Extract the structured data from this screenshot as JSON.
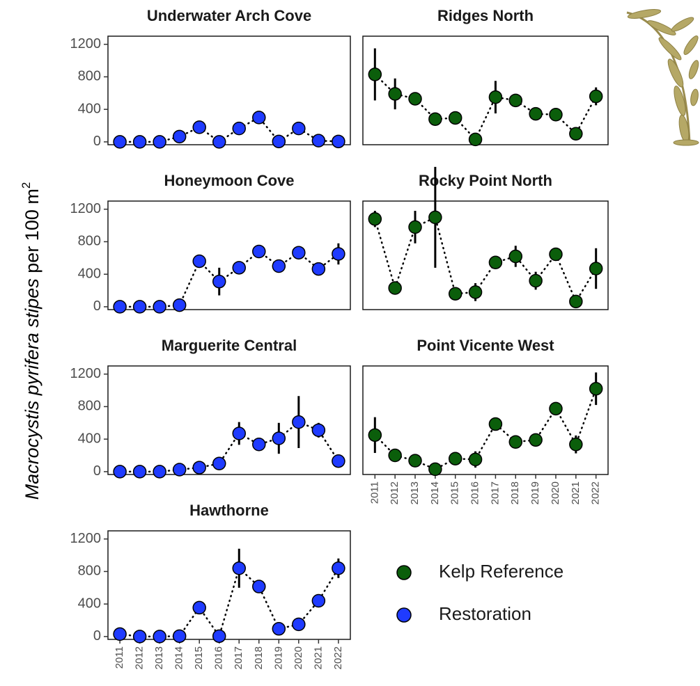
{
  "y_label": [
    "Macrocystis pyrifera stipes",
    "per 100 m",
    "2"
  ],
  "legend": [
    {
      "label": "Kelp Reference",
      "color": "#0b5e0b"
    },
    {
      "label": "Restoration",
      "color": "#1f3bff"
    }
  ],
  "chart_data": [
    {
      "type": "line",
      "title": "Underwater Arch Cove",
      "color": "#1f3bff",
      "x": [
        2011,
        2012,
        2013,
        2014,
        2015,
        2016,
        2017,
        2018,
        2019,
        2020,
        2021,
        2022
      ],
      "values": [
        0,
        0,
        0,
        65,
        180,
        0,
        165,
        300,
        5,
        165,
        15,
        5
      ],
      "errors": [
        0,
        0,
        0,
        10,
        15,
        0,
        20,
        20,
        0,
        20,
        5,
        0
      ],
      "xlim": [
        2010.4,
        2022.6
      ],
      "ylim": [
        -35,
        1300
      ],
      "yticks": [
        0,
        400,
        800,
        1200
      ]
    },
    {
      "type": "line",
      "title": "Ridges North",
      "color": "#0b5e0b",
      "x": [
        2011,
        2012,
        2013,
        2014,
        2015,
        2016,
        2017,
        2018,
        2019,
        2020,
        2021,
        2022
      ],
      "values": [
        830,
        590,
        530,
        280,
        295,
        30,
        550,
        510,
        345,
        335,
        100,
        560
      ],
      "errors": [
        320,
        190,
        30,
        20,
        20,
        10,
        200,
        80,
        30,
        20,
        20,
        110
      ],
      "xlim": [
        2010.4,
        2022.6
      ],
      "ylim": [
        -35,
        1300
      ]
    },
    {
      "type": "line",
      "title": "Honeymoon Cove",
      "color": "#1f3bff",
      "x": [
        2011,
        2012,
        2013,
        2014,
        2015,
        2016,
        2017,
        2018,
        2019,
        2020,
        2021,
        2022
      ],
      "values": [
        0,
        0,
        0,
        20,
        560,
        310,
        480,
        680,
        500,
        665,
        465,
        650
      ],
      "errors": [
        0,
        0,
        0,
        10,
        30,
        170,
        40,
        30,
        20,
        30,
        30,
        130
      ],
      "xlim": [
        2010.4,
        2022.6
      ],
      "ylim": [
        -35,
        1300
      ],
      "yticks": [
        0,
        400,
        800,
        1200
      ]
    },
    {
      "type": "line",
      "title": "Rocky Point North",
      "color": "#0b5e0b",
      "x": [
        2011,
        2012,
        2013,
        2014,
        2015,
        2016,
        2017,
        2018,
        2019,
        2020,
        2021,
        2022
      ],
      "values": [
        1080,
        230,
        980,
        1100,
        160,
        180,
        545,
        620,
        320,
        645,
        65,
        470
      ],
      "errors": [
        100,
        20,
        200,
        620,
        20,
        110,
        30,
        130,
        110,
        30,
        10,
        250
      ],
      "xlim": [
        2010.4,
        2022.6
      ],
      "ylim": [
        -35,
        1300
      ]
    },
    {
      "type": "line",
      "title": "Marguerite Central",
      "color": "#1f3bff",
      "x": [
        2011,
        2012,
        2013,
        2014,
        2015,
        2016,
        2017,
        2018,
        2019,
        2020,
        2021,
        2022
      ],
      "values": [
        0,
        0,
        0,
        25,
        50,
        100,
        470,
        335,
        410,
        610,
        510,
        130
      ],
      "errors": [
        0,
        0,
        0,
        10,
        15,
        60,
        140,
        30,
        190,
        320,
        90,
        20
      ],
      "xlim": [
        2010.4,
        2022.6
      ],
      "ylim": [
        -35,
        1300
      ],
      "yticks": [
        0,
        400,
        800,
        1200
      ]
    },
    {
      "type": "line",
      "title": "Point Vicente West",
      "color": "#0b5e0b",
      "x": [
        2011,
        2012,
        2013,
        2014,
        2015,
        2016,
        2017,
        2018,
        2019,
        2020,
        2021,
        2022
      ],
      "values": [
        450,
        200,
        135,
        30,
        160,
        150,
        585,
        365,
        390,
        775,
        335,
        1020
      ],
      "errors": [
        220,
        20,
        20,
        10,
        60,
        100,
        30,
        20,
        20,
        80,
        110,
        200
      ],
      "xlim": [
        2010.4,
        2022.6
      ],
      "ylim": [
        -35,
        1300
      ],
      "xticks": [
        2011,
        2012,
        2013,
        2014,
        2015,
        2016,
        2017,
        2018,
        2019,
        2020,
        2021,
        2022
      ]
    },
    {
      "type": "line",
      "title": "Hawthorne",
      "color": "#1f3bff",
      "x": [
        2011,
        2012,
        2013,
        2014,
        2015,
        2016,
        2017,
        2018,
        2019,
        2020,
        2021,
        2022
      ],
      "values": [
        30,
        0,
        0,
        5,
        355,
        5,
        840,
        615,
        95,
        150,
        440,
        840
      ],
      "errors": [
        10,
        0,
        0,
        5,
        20,
        5,
        240,
        30,
        10,
        20,
        20,
        120
      ],
      "xlim": [
        2010.4,
        2022.6
      ],
      "ylim": [
        -35,
        1300
      ],
      "yticks": [
        0,
        400,
        800,
        1200
      ],
      "xticks": [
        2011,
        2012,
        2013,
        2014,
        2015,
        2016,
        2017,
        2018,
        2019,
        2020,
        2021,
        2022
      ]
    }
  ]
}
